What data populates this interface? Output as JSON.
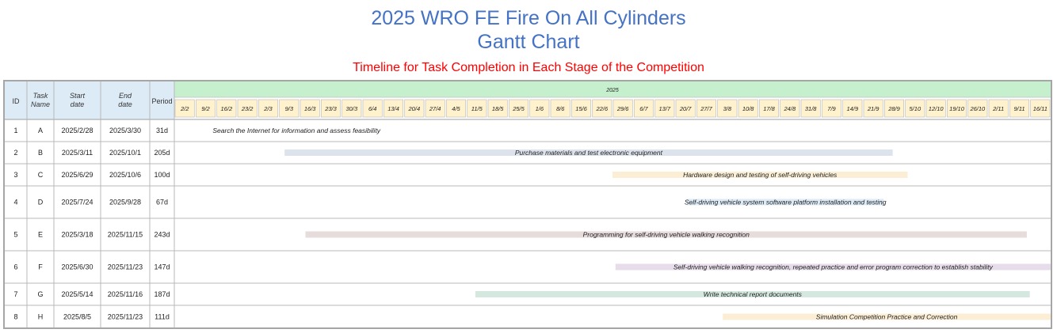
{
  "title_line1": "2025 WRO FE Fire On All Cylinders",
  "title_line2": "Gantt Chart",
  "subtitle": "Timeline for Task Completion in Each Stage of the Competition",
  "colors": {
    "title": "#4472c4",
    "subtitle": "#ff0000",
    "header_fill": "#ddebf7",
    "year_fill": "#c6efce",
    "week_fill": "#fff2cc"
  },
  "chart_data": {
    "type": "gantt",
    "columns": [
      "ID",
      "Task Name",
      "Start date",
      "End date",
      "Period"
    ],
    "timeline_year": "2025",
    "week_labels": [
      "2/2",
      "9/2",
      "16/2",
      "23/2",
      "2/3",
      "9/3",
      "16/3",
      "23/3",
      "30/3",
      "6/4",
      "13/4",
      "20/4",
      "27/4",
      "4/5",
      "11/5",
      "18/5",
      "25/5",
      "1/6",
      "8/6",
      "15/6",
      "22/6",
      "29/6",
      "6/7",
      "13/7",
      "20/7",
      "27/7",
      "3/8",
      "10/8",
      "17/8",
      "24/8",
      "31/8",
      "7/9",
      "14/9",
      "21/9",
      "28/9",
      "5/10",
      "12/10",
      "19/10",
      "26/10",
      "2/11",
      "9/11",
      "16/11"
    ],
    "timeline_start": "2025-02-02",
    "timeline_end": "2025-11-23",
    "tasks": [
      {
        "id": "1",
        "name": "A",
        "start": "2025/2/28",
        "end": "2025/3/30",
        "period": "31d",
        "desc": "Search the Internet for information and assess feasibility",
        "color": "#ffffff"
      },
      {
        "id": "2",
        "name": "B",
        "start": "2025/3/11",
        "end": "2025/10/1",
        "period": "205d",
        "desc": "Purchase materials and test electronic equipment",
        "color": "#dce3ec"
      },
      {
        "id": "3",
        "name": "C",
        "start": "2025/6/29",
        "end": "2025/10/6",
        "period": "100d",
        "desc": "Hardware design and testing of self-driving vehicles",
        "color": "#fbeed5"
      },
      {
        "id": "4",
        "name": "D",
        "start": "2025/7/24",
        "end": "2025/9/28",
        "period": "67d",
        "desc": "Self-driving vehicle system software platform installation and testing",
        "color": "#ddebf7"
      },
      {
        "id": "5",
        "name": "E",
        "start": "2025/3/18",
        "end": "2025/11/15",
        "period": "243d",
        "desc": "Programming for self-driving vehicle walking recognition",
        "color": "#e6dcdc"
      },
      {
        "id": "6",
        "name": "F",
        "start": "2025/6/30",
        "end": "2025/11/23",
        "period": "147d",
        "desc": "Self-driving vehicle walking recognition, repeated practice and error program correction to establish stability",
        "color": "#e6dcea"
      },
      {
        "id": "7",
        "name": "G",
        "start": "2025/5/14",
        "end": "2025/11/16",
        "period": "187d",
        "desc": "Write technical report documents",
        "color": "#d5e8df"
      },
      {
        "id": "8",
        "name": "H",
        "start": "2025/8/5",
        "end": "2025/11/23",
        "period": "111d",
        "desc": "Simulation Competition Practice and Correction",
        "color": "#fbeed5"
      }
    ]
  }
}
